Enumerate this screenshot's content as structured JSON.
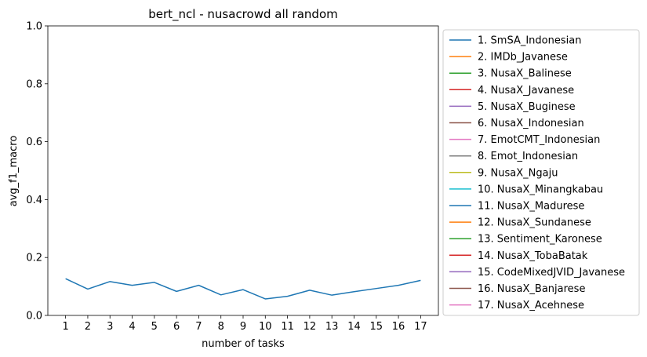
{
  "chart_data": {
    "type": "line",
    "title": "bert_ncl - nusacrowd all random",
    "xlabel": "number of tasks",
    "ylabel": "avg_f1_macro",
    "x": [
      1,
      2,
      3,
      4,
      5,
      6,
      7,
      8,
      9,
      10,
      11,
      12,
      13,
      14,
      15,
      16,
      17
    ],
    "ylim": [
      0.0,
      1.0
    ],
    "yticks": [
      0.0,
      0.2,
      0.4,
      0.6,
      0.8,
      1.0
    ],
    "ytick_labels": [
      "0.0",
      "0.2",
      "0.4",
      "0.6",
      "0.8",
      "1.0"
    ],
    "grid": false,
    "legend_position": "outside-right",
    "series": [
      {
        "name": "1. SmSA_Indonesian",
        "color": "#1f77b4",
        "values": [
          0.127,
          0.091,
          0.117,
          0.104,
          0.114,
          0.083,
          0.104,
          0.071,
          0.089,
          0.057,
          0.066,
          0.087,
          0.07,
          0.082,
          0.093,
          0.104,
          0.121
        ]
      }
    ],
    "legend": [
      {
        "label": "1. SmSA_Indonesian",
        "color": "#1f77b4"
      },
      {
        "label": "2. IMDb_Javanese",
        "color": "#ff7f0e"
      },
      {
        "label": "3. NusaX_Balinese",
        "color": "#2ca02c"
      },
      {
        "label": "4. NusaX_Javanese",
        "color": "#d62728"
      },
      {
        "label": "5. NusaX_Buginese",
        "color": "#9467bd"
      },
      {
        "label": "6. NusaX_Indonesian",
        "color": "#8c564b"
      },
      {
        "label": "7. EmotCMT_Indonesian",
        "color": "#e377c2"
      },
      {
        "label": "8. Emot_Indonesian",
        "color": "#7f7f7f"
      },
      {
        "label": "9. NusaX_Ngaju",
        "color": "#bcbd22"
      },
      {
        "label": "10. NusaX_Minangkabau",
        "color": "#17becf"
      },
      {
        "label": "11. NusaX_Madurese",
        "color": "#1f77b4"
      },
      {
        "label": "12. NusaX_Sundanese",
        "color": "#ff7f0e"
      },
      {
        "label": "13. Sentiment_Karonese",
        "color": "#2ca02c"
      },
      {
        "label": "14. NusaX_TobaBatak",
        "color": "#d62728"
      },
      {
        "label": "15. CodeMixedJVID_Javanese",
        "color": "#9467bd"
      },
      {
        "label": "16. NusaX_Banjarese",
        "color": "#8c564b"
      },
      {
        "label": "17. NusaX_Acehnese",
        "color": "#e377c2"
      }
    ]
  }
}
